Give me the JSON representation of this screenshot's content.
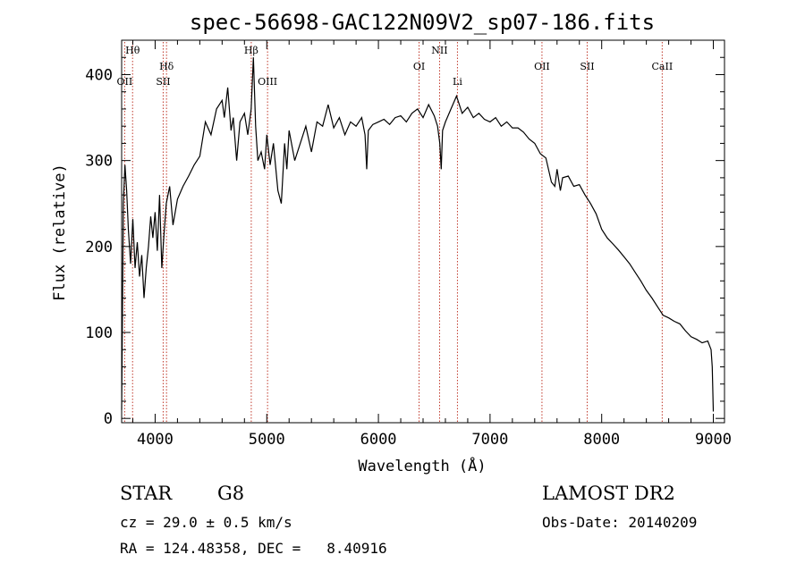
{
  "chart_data": {
    "type": "line",
    "title": "spec-56698-GAC122N09V2_sp07-186.fits",
    "xlabel": "Wavelength (Å)",
    "ylabel": "Flux (relative)",
    "xlim": [
      3700,
      9100
    ],
    "ylim": [
      -5,
      440
    ],
    "xticks": [
      4000,
      5000,
      6000,
      7000,
      8000,
      9000
    ],
    "yticks": [
      0,
      100,
      200,
      300,
      400
    ],
    "grid": false,
    "series": [
      {
        "x": [
          3700,
          3715,
          3730,
          3745,
          3760,
          3780,
          3800,
          3820,
          3840,
          3860,
          3880,
          3900,
          3920,
          3940,
          3960,
          3980,
          4000,
          4020,
          4040,
          4060,
          4080,
          4100,
          4130,
          4160,
          4200,
          4250,
          4300,
          4350,
          4400,
          4450,
          4500,
          4550,
          4600,
          4620,
          4650,
          4680,
          4700,
          4730,
          4760,
          4800,
          4830,
          4860,
          4880,
          4900,
          4920,
          4950,
          4980,
          5000,
          5030,
          5060,
          5100,
          5130,
          5160,
          5180,
          5200,
          5250,
          5300,
          5350,
          5400,
          5450,
          5500,
          5550,
          5600,
          5650,
          5700,
          5750,
          5800,
          5850,
          5880,
          5895,
          5910,
          5950,
          6000,
          6050,
          6100,
          6150,
          6200,
          6250,
          6300,
          6350,
          6400,
          6450,
          6500,
          6530,
          6550,
          6563,
          6575,
          6600,
          6650,
          6700,
          6750,
          6800,
          6850,
          6900,
          6950,
          7000,
          7050,
          7100,
          7150,
          7200,
          7250,
          7300,
          7350,
          7400,
          7450,
          7500,
          7550,
          7580,
          7600,
          7630,
          7650,
          7700,
          7750,
          7800,
          7850,
          7900,
          7950,
          8000,
          8050,
          8100,
          8150,
          8200,
          8250,
          8300,
          8350,
          8400,
          8450,
          8500,
          8550,
          8600,
          8650,
          8700,
          8750,
          8800,
          8850,
          8900,
          8950,
          8980,
          8990,
          9000
        ],
        "y": [
          10,
          250,
          295,
          265,
          220,
          180,
          232,
          175,
          205,
          165,
          190,
          140,
          175,
          200,
          235,
          210,
          240,
          195,
          260,
          175,
          215,
          250,
          270,
          225,
          255,
          270,
          282,
          295,
          305,
          345,
          330,
          360,
          370,
          350,
          385,
          335,
          350,
          300,
          345,
          355,
          330,
          360,
          420,
          340,
          300,
          310,
          290,
          330,
          295,
          320,
          265,
          250,
          320,
          290,
          335,
          300,
          320,
          340,
          310,
          345,
          340,
          365,
          338,
          350,
          330,
          345,
          340,
          350,
          330,
          290,
          335,
          342,
          345,
          348,
          342,
          350,
          352,
          345,
          355,
          360,
          350,
          365,
          352,
          340,
          320,
          290,
          335,
          345,
          360,
          375,
          355,
          362,
          350,
          355,
          348,
          345,
          350,
          340,
          345,
          338,
          338,
          333,
          325,
          320,
          308,
          303,
          275,
          270,
          290,
          265,
          280,
          282,
          270,
          272,
          260,
          250,
          238,
          220,
          210,
          203,
          196,
          188,
          180,
          170,
          160,
          149,
          140,
          130,
          120,
          117,
          113,
          110,
          102,
          95,
          92,
          88,
          90,
          80,
          60,
          8
        ]
      }
    ],
    "annotations": [
      {
        "label": "Hθ",
        "x": 3798,
        "row": 1
      },
      {
        "label": "OII",
        "x": 3727,
        "row": 3
      },
      {
        "label": "Hδ",
        "x": 4102,
        "row": 2
      },
      {
        "label": "SII",
        "x": 4072,
        "row": 3
      },
      {
        "label": "Hβ",
        "x": 4861,
        "row": 1
      },
      {
        "label": "OIII",
        "x": 5007,
        "row": 3
      },
      {
        "label": "OI",
        "x": 6364,
        "row": 2
      },
      {
        "label": "NII",
        "x": 6548,
        "row": 1
      },
      {
        "label": "Li",
        "x": 6708,
        "row": 3
      },
      {
        "label": "OII",
        "x": 7465,
        "row": 2
      },
      {
        "label": "SII",
        "x": 7870,
        "row": 2
      },
      {
        "label": "CaII",
        "x": 8542,
        "row": 2
      }
    ]
  },
  "footer": {
    "class_label": "STAR",
    "subclass": "G8",
    "survey": "LAMOST DR2",
    "cz": "cz = 29.0 ± 0.5 km/s",
    "obs_date": "Obs-Date: 20140209",
    "coords": "RA = 124.48358, DEC =   8.40916"
  }
}
